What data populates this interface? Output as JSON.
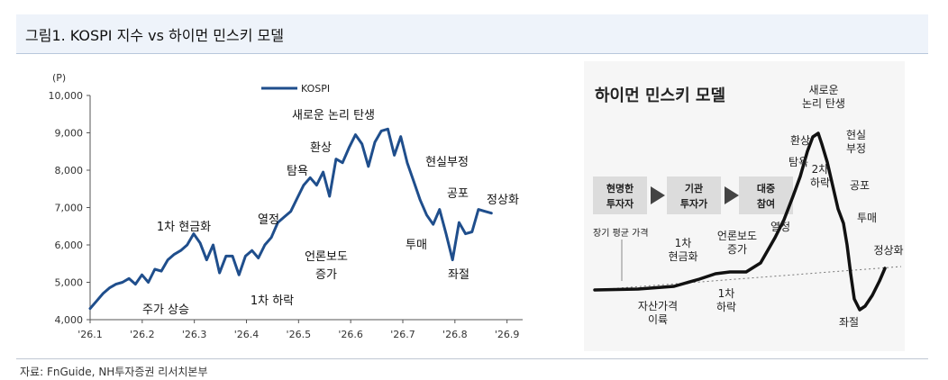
{
  "title": "그림1. KOSPI 지수 vs 하이먼 민스키 모델",
  "source": "자료: FnGuide, NH투자증권 리서치본부",
  "chart_data": [
    {
      "type": "line",
      "yunit": "(P)",
      "ylim": [
        4000,
        10000
      ],
      "yticks": [
        "4,000",
        "5,000",
        "6,000",
        "7,000",
        "8,000",
        "9,000",
        "10,000"
      ],
      "xticks": [
        "'26.1",
        "'26.2",
        "'26.3",
        "'26.4",
        "'26.5",
        "'26.6",
        "'26.7",
        "'26.8",
        "'26.9"
      ],
      "legend": "KOSPI",
      "legend_position": "top",
      "color": "#1f4e8c",
      "series": [
        {
          "name": "KOSPI",
          "values": [
            4300,
            4500,
            4700,
            4850,
            4950,
            5000,
            5100,
            4950,
            5200,
            5000,
            5350,
            5300,
            5600,
            5750,
            5850,
            6000,
            6300,
            6050,
            5600,
            6000,
            5250,
            5700,
            5700,
            5200,
            5700,
            5850,
            5650,
            6000,
            6200,
            6600,
            6750,
            6900,
            7250,
            7600,
            7800,
            7600,
            7950,
            7300,
            8300,
            8200,
            8600,
            8950,
            8700,
            8100,
            8750,
            9050,
            9100,
            8400,
            8900,
            8200,
            7700,
            7200,
            6800,
            6550,
            6950,
            6300,
            5600,
            6600,
            6300,
            6350,
            6950,
            6900,
            6850
          ]
        }
      ],
      "annotations": [
        "새로운 논리 탄생",
        "환상",
        "탐욕",
        "열정",
        "1차 현금화",
        "현실부정",
        "공포",
        "정상화",
        "투매",
        "좌절",
        "언론보도 증가",
        "주가 상승",
        "1차 하락"
      ]
    },
    {
      "type": "diagram",
      "title": "하이먼 민스키 모델",
      "flow": [
        "현명한 투자자",
        "기관 투자가",
        "대중 참여"
      ],
      "baseline_label": "장기 평균 가격",
      "labels": [
        "새로운 논리 탄생",
        "현실 부정",
        "환상",
        "탐욕",
        "2차 하락",
        "공포",
        "투매",
        "정상화",
        "좌절",
        "열정",
        "언론보도 증가",
        "1차 현금화",
        "1차 하락",
        "자산가격 이륙"
      ]
    }
  ]
}
